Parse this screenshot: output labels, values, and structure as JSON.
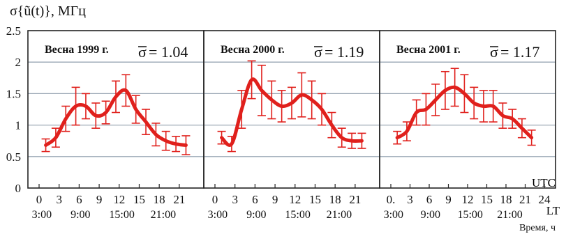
{
  "chart_data": {
    "type": "line",
    "ylabel": "σ{ũ(t)}, МГц",
    "y_ticks": [
      "0",
      "0.5",
      "1",
      "1.5",
      "2",
      "2.5"
    ],
    "ylim": [
      0,
      2.5
    ],
    "x_tick_labels": [
      [
        "0",
        "3",
        "6",
        "9",
        "12",
        "15",
        "18",
        "21"
      ],
      [
        "0",
        "3",
        "6",
        "9",
        "12",
        "15",
        "18",
        "21"
      ],
      [
        "0.",
        "3",
        "6",
        "9",
        "12",
        "15",
        "18",
        "21",
        "24"
      ]
    ],
    "lt_labels": [
      [
        "3:00",
        "9:00",
        "15:00",
        "21:00"
      ],
      [
        "3:00",
        "9:00",
        "15:00",
        "21:00"
      ],
      [
        "3:00",
        "9:00",
        "15:00",
        "21:00"
      ]
    ],
    "utc_label": "UTC",
    "lt_label": "LT",
    "xlabel": "Время, ч",
    "color": "#e0201c",
    "grid": true,
    "panels": [
      {
        "title": "Весна 1999 г.",
        "sigma_label": "σ",
        "sigma_value": "= 1.04",
        "x": [
          1,
          2.5,
          4,
          5.5,
          7,
          8.5,
          10,
          11.5,
          13,
          14.5,
          16,
          17.5,
          19,
          20.5,
          22
        ],
        "y": [
          0.68,
          0.8,
          1.1,
          1.3,
          1.3,
          1.15,
          1.2,
          1.45,
          1.55,
          1.25,
          1.05,
          0.85,
          0.75,
          0.7,
          0.68
        ],
        "err": [
          0.1,
          0.15,
          0.2,
          0.3,
          0.2,
          0.2,
          0.18,
          0.25,
          0.25,
          0.22,
          0.2,
          0.18,
          0.15,
          0.12,
          0.15
        ]
      },
      {
        "title": "Весна 2000 г.",
        "sigma_label": "σ",
        "sigma_value": "= 1.19",
        "x": [
          1,
          2.5,
          4,
          5.5,
          7,
          8.5,
          10,
          11.5,
          13,
          14.5,
          16,
          17.5,
          19,
          20.5,
          22
        ],
        "y": [
          0.8,
          0.7,
          1.25,
          1.72,
          1.55,
          1.4,
          1.3,
          1.35,
          1.48,
          1.4,
          1.25,
          1.0,
          0.8,
          0.75,
          0.75
        ],
        "err": [
          0.1,
          0.12,
          0.3,
          0.3,
          0.4,
          0.3,
          0.25,
          0.25,
          0.35,
          0.3,
          0.25,
          0.2,
          0.15,
          0.12,
          0.12
        ]
      },
      {
        "title": "Весна 2001 г.",
        "sigma_label": "σ",
        "sigma_value": "= 1.17",
        "x": [
          1,
          2.5,
          4,
          5.5,
          7,
          8.5,
          10,
          11.5,
          13,
          14.5,
          16,
          17.5,
          19,
          20.5,
          22
        ],
        "y": [
          0.8,
          0.9,
          1.2,
          1.25,
          1.4,
          1.55,
          1.6,
          1.5,
          1.35,
          1.3,
          1.3,
          1.15,
          1.1,
          0.95,
          0.8
        ],
        "err": [
          0.1,
          0.15,
          0.2,
          0.25,
          0.25,
          0.3,
          0.3,
          0.3,
          0.25,
          0.25,
          0.25,
          0.2,
          0.15,
          0.15,
          0.12
        ]
      }
    ]
  }
}
